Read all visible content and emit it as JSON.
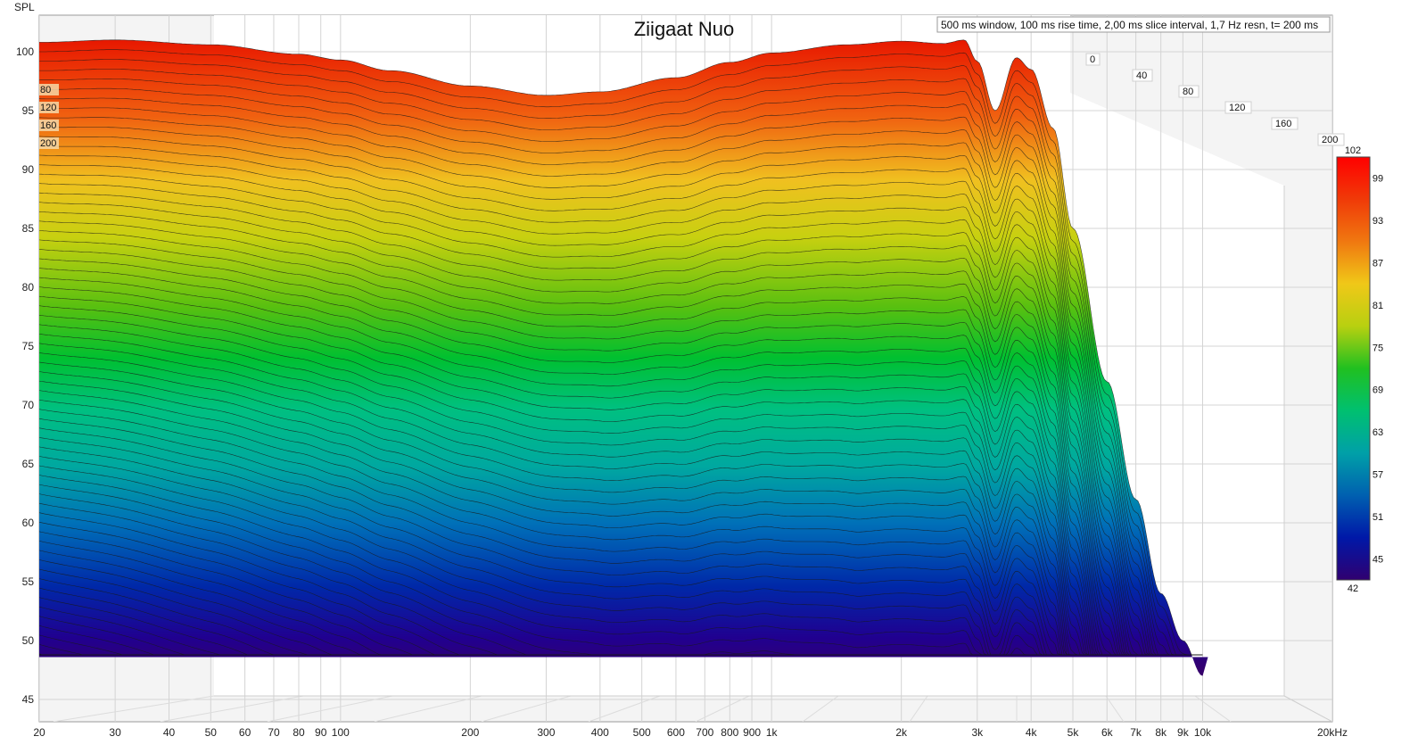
{
  "chart_data": {
    "type": "waterfall",
    "title": "Ziigaat Nuo",
    "info": "500 ms window, 100 ms rise time, 2,00 ms slice interval, 1,7 Hz resn, t= 200 ms",
    "ylabel": "SPL",
    "ylim": [
      43,
      102
    ],
    "y_ticks": [
      "100",
      "95",
      "90",
      "85",
      "80",
      "75",
      "70",
      "65",
      "60",
      "55",
      "50",
      "45"
    ],
    "x_unit": "Hz",
    "x_log": true,
    "xlim": [
      20,
      20000
    ],
    "x_ticks": [
      {
        "v": 20,
        "label": "20"
      },
      {
        "v": 30,
        "label": "30"
      },
      {
        "v": 40,
        "label": "40"
      },
      {
        "v": 50,
        "label": "50"
      },
      {
        "v": 60,
        "label": "60"
      },
      {
        "v": 70,
        "label": "70"
      },
      {
        "v": 80,
        "label": "80"
      },
      {
        "v": 90,
        "label": "90"
      },
      {
        "v": 100,
        "label": "100"
      },
      {
        "v": 200,
        "label": "200"
      },
      {
        "v": 300,
        "label": "300"
      },
      {
        "v": 400,
        "label": "400"
      },
      {
        "v": 500,
        "label": "500"
      },
      {
        "v": 600,
        "label": "600"
      },
      {
        "v": 700,
        "label": "700"
      },
      {
        "v": 800,
        "label": "800"
      },
      {
        "v": 900,
        "label": "900"
      },
      {
        "v": 1000,
        "label": "1k"
      },
      {
        "v": 2000,
        "label": "2k"
      },
      {
        "v": 3000,
        "label": "3k"
      },
      {
        "v": 4000,
        "label": "4k"
      },
      {
        "v": 5000,
        "label": "5k"
      },
      {
        "v": 6000,
        "label": "6k"
      },
      {
        "v": 7000,
        "label": "7k"
      },
      {
        "v": 8000,
        "label": "8k"
      },
      {
        "v": 9000,
        "label": "9k"
      },
      {
        "v": 10000,
        "label": "10k"
      },
      {
        "v": 20000,
        "label": "20kHz"
      }
    ],
    "time_ticks_ms": [
      "0",
      "40",
      "80",
      "120",
      "160",
      "200"
    ],
    "time_ticks_left": [
      "80",
      "120",
      "160",
      "200"
    ],
    "colorbar": {
      "min": 42,
      "max": 102,
      "labels": [
        "102",
        "99",
        "93",
        "87",
        "81",
        "75",
        "69",
        "63",
        "57",
        "51",
        "45",
        "42"
      ],
      "colors": [
        "#ff0000",
        "#f03a08",
        "#f07810",
        "#f0c818",
        "#b8d010",
        "#20c020",
        "#00c070",
        "#00a0a8",
        "#0060b0",
        "#0018a8",
        "#300070"
      ]
    },
    "front_slice_t0": {
      "f": [
        20,
        30,
        50,
        80,
        100,
        130,
        200,
        300,
        400,
        600,
        800,
        1000,
        1500,
        2000,
        2500,
        2800,
        3000,
        3300,
        3700,
        4000,
        4500,
        5000,
        6000,
        7000,
        8000,
        9000,
        10000
      ],
      "spl": [
        100.8,
        101.0,
        100.6,
        99.8,
        99.3,
        98.4,
        97.1,
        96.3,
        96.6,
        97.8,
        99.1,
        99.9,
        100.6,
        100.9,
        100.7,
        101.0,
        99.2,
        95.0,
        99.5,
        98.5,
        93.5,
        85.0,
        72.0,
        62.0,
        54.0,
        50.0,
        47.0
      ]
    }
  }
}
